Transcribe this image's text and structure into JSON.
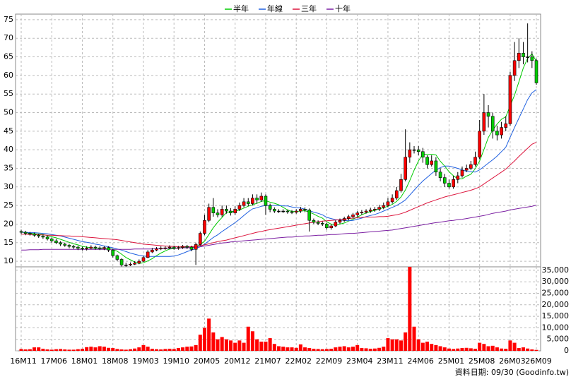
{
  "chart_data": {
    "type": "candlestick",
    "categories": [
      "16M11",
      null,
      null,
      null,
      null,
      null,
      null,
      "17M06",
      null,
      null,
      null,
      null,
      null,
      null,
      "18M01",
      null,
      null,
      null,
      null,
      null,
      null,
      "18M08",
      null,
      null,
      null,
      null,
      null,
      null,
      "19M03",
      null,
      null,
      null,
      null,
      null,
      null,
      "19M10",
      null,
      null,
      null,
      null,
      null,
      null,
      "20M05",
      null,
      null,
      null,
      null,
      null,
      null,
      "20M12",
      null,
      null,
      null,
      null,
      null,
      null,
      "21M07",
      null,
      null,
      null,
      null,
      null,
      null,
      "22M02",
      null,
      null,
      null,
      null,
      null,
      null,
      "22M09",
      null,
      null,
      null,
      null,
      null,
      null,
      "23M04",
      null,
      null,
      null,
      null,
      null,
      null,
      "23M11",
      null,
      null,
      null,
      null,
      null,
      null,
      "24M06",
      null,
      null,
      null,
      null,
      null,
      null,
      "25M01",
      null,
      null,
      null,
      null,
      null,
      null,
      "25M08",
      null,
      null,
      null,
      null,
      null,
      null,
      "26M03",
      null,
      null,
      null,
      null,
      null,
      "26M09"
    ],
    "open": [
      18.0,
      17.8,
      17.5,
      17.3,
      17.0,
      16.8,
      16.5,
      16.0,
      15.5,
      15.0,
      14.6,
      14.3,
      14.0,
      13.8,
      13.5,
      13.3,
      13.5,
      13.8,
      13.6,
      13.4,
      13.7,
      13.0,
      11.5,
      10.5,
      9.0,
      9.0,
      9.2,
      9.5,
      10.0,
      11.0,
      12.5,
      13.0,
      13.3,
      13.5,
      13.6,
      13.8,
      13.5,
      13.7,
      14.0,
      13.8,
      13.2,
      14.5,
      17.5,
      21.0,
      24.5,
      23.0,
      22.5,
      24.0,
      23.5,
      23.0,
      24.0,
      25.0,
      26.0,
      25.5,
      27.0,
      26.5,
      27.5,
      25.0,
      24.0,
      23.5,
      23.5,
      23.5,
      23.3,
      23.2,
      23.5,
      24.0,
      23.8,
      21.0,
      20.5,
      20.2,
      20.0,
      19.0,
      19.5,
      20.5,
      21.0,
      21.5,
      22.0,
      22.5,
      23.0,
      23.2,
      23.5,
      23.8,
      24.0,
      24.5,
      25.0,
      26.0,
      27.0,
      29.0,
      32.0,
      38.0,
      40.0,
      40.0,
      39.5,
      38.0,
      36.0,
      37.0,
      34.0,
      32.5,
      31.0,
      30.0,
      32.0,
      33.0,
      34.5,
      35.0,
      36.0,
      38.0,
      45.0,
      50.0,
      49.0,
      45.0,
      44.0,
      46.0,
      47.0,
      60.0,
      64.0,
      66.0,
      65.0,
      65.0,
      64.0
    ],
    "high": [
      18.5,
      18.2,
      17.9,
      17.7,
      17.4,
      17.2,
      16.9,
      16.4,
      16.0,
      15.4,
      15.0,
      14.7,
      14.4,
      14.2,
      13.9,
      14.0,
      14.3,
      14.2,
      14.0,
      14.1,
      14.0,
      13.3,
      11.8,
      10.8,
      9.6,
      9.7,
      10.0,
      10.5,
      11.5,
      13.0,
      13.6,
      13.8,
      14.0,
      14.0,
      14.3,
      14.2,
      14.1,
      14.4,
      14.4,
      14.2,
      15.0,
      18.0,
      22.5,
      25.5,
      27.0,
      24.0,
      25.0,
      25.0,
      24.3,
      24.8,
      25.8,
      27.0,
      27.0,
      28.0,
      28.0,
      28.5,
      28.0,
      25.5,
      24.5,
      24.0,
      24.0,
      23.9,
      23.8,
      24.0,
      24.6,
      24.5,
      24.2,
      21.5,
      21.0,
      20.7,
      20.3,
      20.0,
      21.0,
      21.5,
      22.0,
      22.5,
      23.0,
      23.5,
      23.8,
      24.0,
      24.4,
      24.6,
      25.2,
      25.8,
      27.0,
      28.0,
      30.0,
      33.5,
      45.5,
      42.0,
      41.0,
      41.0,
      40.5,
      38.5,
      38.5,
      38.0,
      35.0,
      33.5,
      32.0,
      33.0,
      34.0,
      35.5,
      36.0,
      37.0,
      39.5,
      48.0,
      55.0,
      52.0,
      50.0,
      46.5,
      47.5,
      49.0,
      61.0,
      69.0,
      70.0,
      69.0,
      74.0,
      66.5,
      64.5
    ],
    "low": [
      17.3,
      17.0,
      16.9,
      16.6,
      16.3,
      16.0,
      15.6,
      15.0,
      14.6,
      14.1,
      13.9,
      13.5,
      13.3,
      13.0,
      12.9,
      12.9,
      13.2,
      13.1,
      13.0,
      13.0,
      12.5,
      11.0,
      10.0,
      8.6,
      8.5,
      8.7,
      9.0,
      9.2,
      9.8,
      10.8,
      12.2,
      12.7,
      13.0,
      13.1,
      13.2,
      13.1,
      13.1,
      13.3,
      13.3,
      12.7,
      9.0,
      14.2,
      17.0,
      20.5,
      22.0,
      21.8,
      22.0,
      22.8,
      22.3,
      22.5,
      23.5,
      24.5,
      24.8,
      25.0,
      25.5,
      26.0,
      22.5,
      23.2,
      23.0,
      23.0,
      23.0,
      22.8,
      22.7,
      22.8,
      23.0,
      23.2,
      18.0,
      20.0,
      19.7,
      19.5,
      18.5,
      18.5,
      19.2,
      20.0,
      20.6,
      21.0,
      21.5,
      22.0,
      22.5,
      22.8,
      23.0,
      23.3,
      23.5,
      24.0,
      24.5,
      25.5,
      26.5,
      28.5,
      31.5,
      36.5,
      39.0,
      38.5,
      36.5,
      35.0,
      35.5,
      33.0,
      31.5,
      30.0,
      29.5,
      29.5,
      31.0,
      32.5,
      34.0,
      34.5,
      35.5,
      37.5,
      44.0,
      46.0,
      43.0,
      42.5,
      43.0,
      45.0,
      46.5,
      58.5,
      62.0,
      63.0,
      63.5,
      62.0,
      57.5
    ],
    "close": [
      17.8,
      17.5,
      17.3,
      17.0,
      16.8,
      16.5,
      16.0,
      15.5,
      15.0,
      14.6,
      14.3,
      14.0,
      13.8,
      13.5,
      13.3,
      13.5,
      13.8,
      13.6,
      13.4,
      13.7,
      13.0,
      11.5,
      10.5,
      9.0,
      9.0,
      9.2,
      9.5,
      10.0,
      11.0,
      12.5,
      13.0,
      13.3,
      13.5,
      13.6,
      13.8,
      13.5,
      13.7,
      14.0,
      13.8,
      13.2,
      14.5,
      17.5,
      21.0,
      24.5,
      23.0,
      22.5,
      24.0,
      23.5,
      23.0,
      24.0,
      25.0,
      26.0,
      25.5,
      27.0,
      26.5,
      27.5,
      25.0,
      24.0,
      23.5,
      23.5,
      23.5,
      23.3,
      23.2,
      23.5,
      24.0,
      23.8,
      21.0,
      20.5,
      20.2,
      20.0,
      19.0,
      19.5,
      20.5,
      21.0,
      21.5,
      22.0,
      22.5,
      23.0,
      23.2,
      23.5,
      23.8,
      24.0,
      24.5,
      25.0,
      26.0,
      27.0,
      29.0,
      32.0,
      38.0,
      40.0,
      40.0,
      39.5,
      38.0,
      36.0,
      37.0,
      34.0,
      32.5,
      31.0,
      30.0,
      32.0,
      33.0,
      34.5,
      35.0,
      36.0,
      38.0,
      45.0,
      50.0,
      49.0,
      45.0,
      44.0,
      46.0,
      47.0,
      60.0,
      64.0,
      66.0,
      65.0,
      65.0,
      64.0,
      58.0
    ],
    "up_color": "#ff0000",
    "down_color": "#00cc00",
    "series": [
      {
        "name": "半年",
        "color": "#00cc00",
        "values": [
          17.8,
          17.7,
          17.6,
          17.4,
          17.3,
          17.2,
          16.9,
          16.6,
          16.3,
          15.9,
          15.5,
          15.1,
          14.7,
          14.4,
          14.0,
          13.8,
          13.6,
          13.5,
          13.5,
          13.5,
          13.5,
          13.2,
          12.7,
          11.9,
          11.0,
          10.4,
          9.8,
          9.4,
          9.6,
          10.1,
          10.7,
          11.5,
          12.2,
          12.8,
          13.3,
          13.4,
          13.6,
          13.7,
          13.7,
          13.6,
          13.8,
          14.5,
          15.4,
          17.2,
          19.0,
          20.5,
          21.8,
          23.1,
          23.4,
          23.4,
          23.8,
          24.3,
          24.8,
          25.2,
          25.6,
          26.1,
          26.3,
          25.9,
          25.6,
          25.2,
          24.5,
          23.8,
          23.4,
          23.4,
          23.5,
          23.6,
          23.2,
          22.7,
          22.1,
          21.6,
          20.6,
          20.0,
          19.8,
          20.0,
          20.3,
          20.8,
          21.3,
          21.9,
          22.5,
          23.0,
          23.4,
          23.7,
          24.1,
          24.4,
          24.8,
          25.3,
          26.1,
          27.3,
          29.2,
          31.7,
          34.5,
          37.0,
          38.9,
          38.7,
          38.8,
          38.6,
          36.9,
          35.6,
          34.1,
          33.0,
          32.2,
          32.2,
          32.9,
          33.4,
          34.9,
          37.0,
          40.1,
          43.3,
          45.3,
          46.9,
          48.2,
          48.9,
          51.8,
          54.7,
          58.3,
          62.0,
          64.6,
          65.8,
          63.8
        ]
      },
      {
        "name": "年線",
        "color": "#1e5fe0",
        "values": [
          17.8,
          17.8,
          17.7,
          17.7,
          17.6,
          17.5,
          17.4,
          17.2,
          17.0,
          16.8,
          16.5,
          16.2,
          15.9,
          15.6,
          15.3,
          15.1,
          14.9,
          14.6,
          14.4,
          14.1,
          13.9,
          13.6,
          13.3,
          13.0,
          12.6,
          12.2,
          11.9,
          11.6,
          11.4,
          11.3,
          11.3,
          11.3,
          11.3,
          11.3,
          11.3,
          11.4,
          11.7,
          12.1,
          12.6,
          13.0,
          13.4,
          13.9,
          14.6,
          15.5,
          16.4,
          17.1,
          18.0,
          18.8,
          19.6,
          20.4,
          21.3,
          22.3,
          23.3,
          24.1,
          24.4,
          24.8,
          25.0,
          25.0,
          25.0,
          25.0,
          24.9,
          24.9,
          24.6,
          24.4,
          24.3,
          24.0,
          23.6,
          23.2,
          22.9,
          22.5,
          21.8,
          21.5,
          21.2,
          21.1,
          21.0,
          20.9,
          21.0,
          21.3,
          21.6,
          22.0,
          22.3,
          22.6,
          23.0,
          23.5,
          24.0,
          24.5,
          25.0,
          25.7,
          26.5,
          27.8,
          29.1,
          30.4,
          31.6,
          32.6,
          33.6,
          34.5,
          35.2,
          35.6,
          35.6,
          35.3,
          35.0,
          34.6,
          34.2,
          34.1,
          34.0,
          34.6,
          35.5,
          36.4,
          37.3,
          38.3,
          39.5,
          40.7,
          43.4,
          46.0,
          48.5,
          51.0,
          53.5,
          55.3,
          56.2
        ]
      },
      {
        "name": "三年",
        "color": "#dc143c",
        "values": [
          17.3,
          17.3,
          17.2,
          17.2,
          17.1,
          17.1,
          17.0,
          17.0,
          16.9,
          16.9,
          16.8,
          16.8,
          16.7,
          16.7,
          16.6,
          16.5,
          16.4,
          16.3,
          16.2,
          16.1,
          16.0,
          15.9,
          15.8,
          15.6,
          15.4,
          15.2,
          15.0,
          14.8,
          14.6,
          14.5,
          14.4,
          14.3,
          14.2,
          14.1,
          14.0,
          14.0,
          13.9,
          13.9,
          13.9,
          13.9,
          14.0,
          14.2,
          14.4,
          14.7,
          15.0,
          15.3,
          15.5,
          15.7,
          16.0,
          16.3,
          16.6,
          16.9,
          17.2,
          17.5,
          17.8,
          18.0,
          18.3,
          18.5,
          18.7,
          18.9,
          19.1,
          19.3,
          19.5,
          19.7,
          19.9,
          20.1,
          20.3,
          20.5,
          20.6,
          20.8,
          20.9,
          21.0,
          21.1,
          21.2,
          21.3,
          21.5,
          21.6,
          21.7,
          21.8,
          21.9,
          21.9,
          21.9,
          22.0,
          22.0,
          22.1,
          22.3,
          22.5,
          22.8,
          23.2,
          23.7,
          24.2,
          24.7,
          25.2,
          25.7,
          26.1,
          26.5,
          26.9,
          27.3,
          27.6,
          27.9,
          28.2,
          28.5,
          28.8,
          29.1,
          29.5,
          30.0,
          30.8,
          31.6,
          32.4,
          33.2,
          34.0,
          34.8,
          35.9,
          37.0,
          38.2,
          39.3,
          40.4,
          41.5,
          42.0
        ]
      },
      {
        "name": "十年",
        "color": "#7b1fa2",
        "values": [
          13.0,
          13.0,
          13.1,
          13.1,
          13.1,
          13.2,
          13.2,
          13.2,
          13.2,
          13.2,
          13.2,
          13.2,
          13.2,
          13.2,
          13.2,
          13.2,
          13.2,
          13.2,
          13.2,
          13.2,
          13.2,
          13.2,
          13.2,
          13.2,
          13.2,
          13.2,
          13.3,
          13.3,
          13.3,
          13.3,
          13.3,
          13.4,
          13.4,
          13.4,
          13.5,
          13.5,
          13.5,
          13.6,
          13.6,
          13.7,
          13.8,
          13.9,
          14.1,
          14.3,
          14.5,
          14.7,
          14.9,
          15.0,
          15.2,
          15.3,
          15.4,
          15.5,
          15.6,
          15.7,
          15.8,
          15.9,
          16.0,
          16.1,
          16.2,
          16.3,
          16.4,
          16.5,
          16.5,
          16.6,
          16.7,
          16.8,
          16.8,
          16.9,
          17.0,
          17.0,
          17.1,
          17.2,
          17.2,
          17.3,
          17.4,
          17.5,
          17.5,
          17.6,
          17.7,
          17.8,
          17.9,
          18.0,
          18.1,
          18.2,
          18.3,
          18.4,
          18.6,
          18.8,
          19.0,
          19.2,
          19.4,
          19.6,
          19.8,
          20.0,
          20.2,
          20.4,
          20.5,
          20.7,
          20.9,
          21.0,
          21.2,
          21.3,
          21.5,
          21.7,
          21.9,
          22.1,
          22.3,
          22.6,
          22.9,
          23.1,
          23.3,
          23.5,
          23.8,
          24.0,
          24.2,
          24.4,
          24.6,
          24.8,
          25.1
        ]
      }
    ],
    "ylim": [
      8.5,
      76.5
    ],
    "yticks": [
      10,
      15,
      20,
      25,
      30,
      35,
      40,
      45,
      50,
      55,
      60,
      65,
      70,
      75
    ],
    "grid": true,
    "volume": {
      "color": "#ff0000",
      "values": [
        800,
        600,
        700,
        1500,
        1500,
        900,
        600,
        500,
        700,
        800,
        600,
        500,
        500,
        700,
        900,
        1600,
        1800,
        1500,
        2000,
        1800,
        1300,
        1200,
        800,
        600,
        500,
        700,
        1000,
        1500,
        2500,
        1800,
        900,
        700,
        600,
        800,
        900,
        800,
        1200,
        1500,
        1800,
        1900,
        2500,
        7000,
        10000,
        14000,
        8000,
        5000,
        6000,
        5000,
        4500,
        3500,
        4500,
        3500,
        10500,
        8500,
        5000,
        4000,
        4000,
        5500,
        3000,
        2000,
        1800,
        1500,
        1500,
        1300,
        2800,
        1500,
        1200,
        900,
        800,
        700,
        800,
        900,
        1500,
        1800,
        2000,
        1500,
        1800,
        2500,
        1200,
        1100,
        900,
        1000,
        1300,
        1800,
        5500,
        5000,
        5000,
        4500,
        8000,
        37000,
        10500,
        5000,
        3500,
        4000,
        3000,
        2500,
        2000,
        1500,
        1000,
        800,
        1000,
        1200,
        1300,
        1100,
        900,
        3500,
        3000,
        2000,
        2200,
        1500,
        1000,
        900,
        4500,
        3500,
        1200,
        1500,
        1000,
        600,
        400
      ],
      "ylim": [
        0,
        36500
      ],
      "yticks": [
        0,
        {
          "value": 5000,
          "label": "5,000"
        },
        {
          "value": 10000,
          "label": "10,000"
        },
        {
          "value": 15000,
          "label": "15,000"
        },
        {
          "value": 20000,
          "label": "20,000"
        },
        {
          "value": 25000,
          "label": "25,000"
        },
        {
          "value": 30000,
          "label": "30,000"
        },
        {
          "value": 35000,
          "label": "35,000"
        }
      ]
    },
    "note": "資料日期: 09/30  (Goodinfo.tw)"
  }
}
